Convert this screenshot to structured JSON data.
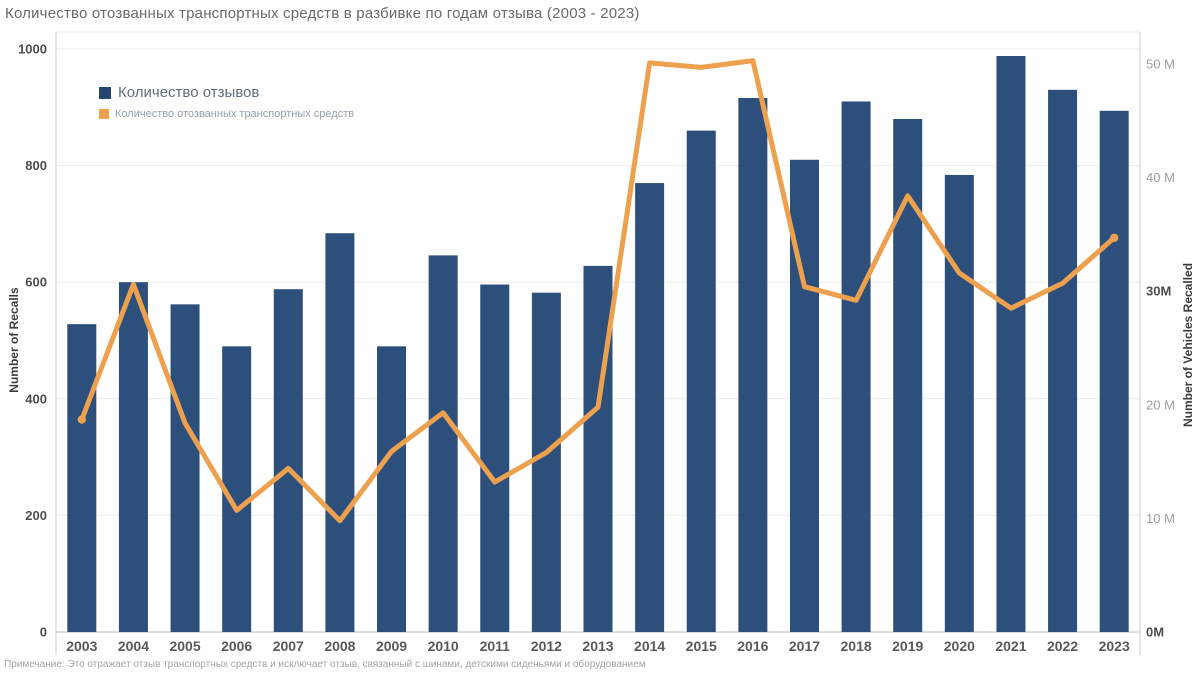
{
  "title": "Количество отозванных транспортных средств в разбивке по годам отзыва (2003 - 2023)",
  "footnote": "Примечание: Это отражает отзыв транспортных средств и исключает отзыв, связанный с шинами, детскими сиденьями и оборудованием",
  "legend": {
    "items": [
      {
        "label": "Количество отзывов",
        "color": "#26456f"
      },
      {
        "label": "Количество отозванных транспортных средств",
        "color": "#eda14e"
      }
    ]
  },
  "axes": {
    "left": {
      "title": "Number of Recalls",
      "ticks": [
        0,
        200,
        400,
        600,
        800,
        1000
      ],
      "ylim": [
        0,
        1000
      ]
    },
    "right": {
      "title": "Number of Vehicles Recalled",
      "ticks": [
        {
          "value": 0,
          "label": "0M",
          "strong": true
        },
        {
          "value": 10,
          "label": "10 M",
          "strong": false
        },
        {
          "value": 20,
          "label": "20 M",
          "strong": false
        },
        {
          "value": 30,
          "label": "30M",
          "strong": true
        },
        {
          "value": 40,
          "label": "40 M",
          "strong": false
        },
        {
          "value": 50,
          "label": "50 M",
          "strong": false
        }
      ],
      "ylim": [
        0,
        50
      ]
    }
  },
  "chart_data": {
    "type": "bar",
    "title": "Количество отозванных транспортных средств в разбивке по годам отзыва (2003 - 2023)",
    "categories": [
      "2003",
      "2004",
      "2005",
      "2006",
      "2007",
      "2008",
      "2009",
      "2010",
      "2011",
      "2012",
      "2013",
      "2014",
      "2015",
      "2016",
      "2017",
      "2018",
      "2019",
      "2020",
      "2021",
      "2022",
      "2023"
    ],
    "series": [
      {
        "name": "Количество отзывов",
        "type": "bar",
        "axis": "left",
        "color": "#2d4f7c",
        "values": [
          528,
          600,
          562,
          490,
          588,
          684,
          490,
          646,
          596,
          582,
          628,
          770,
          860,
          916,
          810,
          910,
          880,
          784,
          988,
          930,
          894
        ]
      },
      {
        "name": "Количество отозванных транспортных средств",
        "type": "line",
        "axis": "right",
        "color": "#eda14e",
        "values_millions": [
          18.7,
          30.6,
          18.4,
          10.7,
          14.4,
          9.8,
          15.9,
          19.3,
          13.2,
          15.8,
          19.8,
          50.1,
          49.7,
          50.3,
          30.4,
          29.2,
          38.4,
          31.6,
          28.5,
          30.7,
          34.7
        ]
      }
    ],
    "left_ylabel": "Number of Recalls",
    "right_ylabel": "Number of Vehicles Recalled",
    "left_ylim": [
      0,
      1000
    ],
    "right_ylim": [
      0,
      50
    ],
    "grid": true,
    "legend_position": "upper-left"
  },
  "style": {
    "grid_color": "#ececec",
    "axis_color": "#cfcfcf",
    "baseline_color": "#bfbfbf"
  }
}
